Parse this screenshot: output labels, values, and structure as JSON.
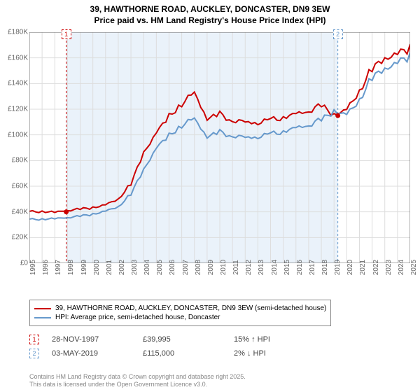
{
  "title": {
    "line1": "39, HAWTHORNE ROAD, AUCKLEY, DONCASTER, DN9 3EW",
    "line2": "Price paid vs. HM Land Registry's House Price Index (HPI)"
  },
  "chart": {
    "type": "line",
    "background_color": "#ffffff",
    "shaded_color": "#eaf2fa",
    "grid_color": "#dddddd",
    "ylim": [
      0,
      180000
    ],
    "ytick_step": 20000,
    "ytick_labels": [
      "£0",
      "£20K",
      "£40K",
      "£60K",
      "£80K",
      "£100K",
      "£120K",
      "£140K",
      "£160K",
      "£180K"
    ],
    "x_years": [
      1995,
      1996,
      1997,
      1998,
      1999,
      2000,
      2001,
      2002,
      2003,
      2004,
      2005,
      2006,
      2007,
      2008,
      2009,
      2010,
      2011,
      2012,
      2013,
      2014,
      2015,
      2016,
      2017,
      2018,
      2019,
      2020,
      2021,
      2022,
      2023,
      2024,
      2025
    ],
    "series": [
      {
        "name": "39, HAWTHORNE ROAD, AUCKLEY, DONCASTER, DN9 3EW (semi-detached house)",
        "color": "#cc0000",
        "width": 2,
        "data": [
          40000,
          40500,
          40000,
          41000,
          42000,
          43000,
          46000,
          50000,
          62000,
          85000,
          102000,
          115000,
          125000,
          132000,
          112000,
          116000,
          112000,
          110000,
          109000,
          111000,
          114000,
          117000,
          119000,
          122000,
          115000,
          120000,
          135000,
          152000,
          158000,
          163000,
          168000
        ]
      },
      {
        "name": "HPI: Average price, semi-detached house, Doncaster",
        "color": "#6699cc",
        "width": 2,
        "data": [
          34000,
          34500,
          35000,
          35500,
          36500,
          38000,
          41000,
          44000,
          54000,
          72000,
          90000,
          100000,
          108000,
          112000,
          98000,
          102000,
          100000,
          98000,
          98000,
          100000,
          103000,
          106000,
          108000,
          111000,
          118000,
          116000,
          128000,
          145000,
          150000,
          156000,
          162000
        ]
      }
    ],
    "markers": [
      {
        "id": "1",
        "year": 1997.9,
        "color": "#cc0000"
      },
      {
        "id": "2",
        "year": 2019.3,
        "color": "#6699cc"
      }
    ],
    "sale_points": [
      {
        "year": 1997.9,
        "value": 39995,
        "color": "#cc0000"
      },
      {
        "year": 2019.3,
        "value": 115000,
        "color": "#cc0000"
      }
    ]
  },
  "legend": {
    "items": [
      {
        "color": "#cc0000",
        "label": "39, HAWTHORNE ROAD, AUCKLEY, DONCASTER, DN9 3EW (semi-detached house)"
      },
      {
        "color": "#6699cc",
        "label": "HPI: Average price, semi-detached house, Doncaster"
      }
    ]
  },
  "events": [
    {
      "id": "1",
      "color": "#cc0000",
      "date": "28-NOV-1997",
      "price": "£39,995",
      "delta": "15% ↑ HPI"
    },
    {
      "id": "2",
      "color": "#6699cc",
      "date": "03-MAY-2019",
      "price": "£115,000",
      "delta": "2% ↓ HPI"
    }
  ],
  "footer": {
    "line1": "Contains HM Land Registry data © Crown copyright and database right 2025.",
    "line2": "This data is licensed under the Open Government Licence v3.0."
  }
}
